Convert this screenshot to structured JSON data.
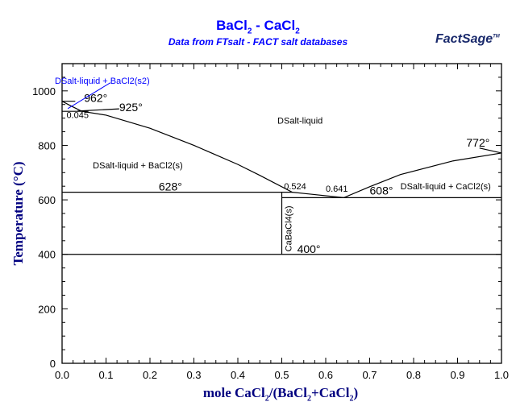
{
  "chart_data": {
    "type": "line",
    "title_main": "BaCl",
    "title_sub1": "2",
    "title_mid": " - CaCl",
    "title_sub2": "2",
    "subtitle": "Data from FTsalt - FACT salt databases",
    "logo": "FactSage",
    "xlabel_parts": [
      "mole CaCl",
      "2",
      "/(BaCl",
      "2",
      "+CaCl",
      "2",
      ")"
    ],
    "ylabel": "Temperature (°C)",
    "xlim": [
      0,
      1
    ],
    "ylim": [
      0,
      1100
    ],
    "x_ticks": [
      "0.0",
      "0.1",
      "0.2",
      "0.3",
      "0.4",
      "0.5",
      "0.6",
      "0.7",
      "0.8",
      "0.9",
      "1.0"
    ],
    "y_ticks": [
      "0",
      "200",
      "400",
      "600",
      "800",
      "1000"
    ],
    "grid": false,
    "liquidus": [
      [
        0,
        962
      ],
      [
        0.02,
        945
      ],
      [
        0.045,
        925
      ],
      [
        0.1,
        911
      ],
      [
        0.2,
        863
      ],
      [
        0.3,
        800
      ],
      [
        0.4,
        730
      ],
      [
        0.45,
        690
      ],
      [
        0.524,
        628
      ],
      [
        0.641,
        608
      ],
      [
        0.7,
        648
      ],
      [
        0.77,
        693
      ],
      [
        0.89,
        743
      ],
      [
        1.0,
        772
      ]
    ],
    "lines": [
      {
        "name": "bacl2-transition-962",
        "points": [
          [
            0,
            962
          ],
          [
            0.03,
            962
          ]
        ]
      },
      {
        "name": "bacl2-transition-925",
        "points": [
          [
            0,
            925
          ],
          [
            0.06,
            925
          ]
        ]
      },
      {
        "name": "eutectic-628",
        "points": [
          [
            0,
            628
          ],
          [
            0.524,
            628
          ]
        ]
      },
      {
        "name": "eutectic-608",
        "points": [
          [
            0.5,
            608
          ],
          [
            1,
            608
          ]
        ]
      },
      {
        "name": "compound-line",
        "points": [
          [
            0.5,
            628
          ],
          [
            0.5,
            400
          ]
        ]
      },
      {
        "name": "solid-400",
        "points": [
          [
            0,
            400
          ],
          [
            1,
            400
          ]
        ]
      },
      {
        "name": "s2-boundary",
        "points": [
          [
            0.035,
            926
          ],
          [
            0.13,
            934
          ]
        ]
      },
      {
        "name": "leader-772",
        "points": [
          [
            0.95,
            790
          ],
          [
            1,
            772
          ]
        ]
      }
    ],
    "annotations": [
      {
        "text": "962°",
        "x": 0.05,
        "y": 960
      },
      {
        "text": "925°",
        "x": 0.13,
        "y": 925
      },
      {
        "text": "0.045",
        "x": 0.01,
        "y": 900
      },
      {
        "text": "DSalt-liquid",
        "x": 0.49,
        "y": 880
      },
      {
        "text": "772°",
        "x": 0.92,
        "y": 795
      },
      {
        "text": "DSalt-liquid + BaCl2(s)",
        "x": 0.07,
        "y": 715
      },
      {
        "text": "628°",
        "x": 0.22,
        "y": 635
      },
      {
        "text": "0.524",
        "x": 0.505,
        "y": 638
      },
      {
        "text": "0.641",
        "x": 0.6,
        "y": 630
      },
      {
        "text": "608°",
        "x": 0.7,
        "y": 620
      },
      {
        "text": "DSalt-liquid + CaCl2(s)",
        "x": 0.77,
        "y": 638
      },
      {
        "text": "400°",
        "x": 0.535,
        "y": 405
      }
    ],
    "blue_label": "DSalt-liquid + BaCl2(s2)",
    "compound_label": "CaBaCl4(s)",
    "colors": {
      "title": "#0000ff",
      "axis_label": "#000080",
      "lines": "#000000",
      "blue_label": "#0000ff"
    }
  }
}
